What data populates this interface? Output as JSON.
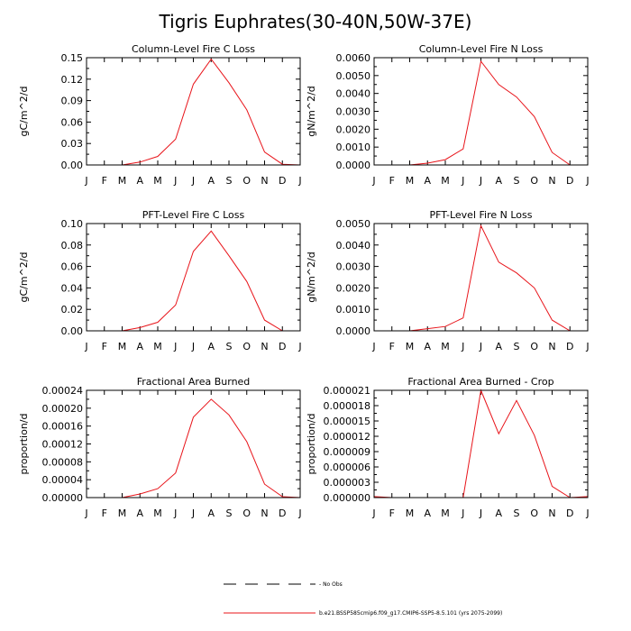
{
  "figure_title": "Tigris Euphrates(30-40N,50W-37E)",
  "months": [
    "J",
    "F",
    "M",
    "A",
    "M",
    "J",
    "J",
    "A",
    "S",
    "O",
    "N",
    "D",
    "J"
  ],
  "chart_data": [
    {
      "type": "line",
      "title": "Column-Level Fire C Loss",
      "ylabel": "gC/m^2/d",
      "ylim": [
        0,
        0.15
      ],
      "yticks": [
        "0.00",
        "0.03",
        "0.06",
        "0.09",
        "0.12",
        "0.15"
      ],
      "series": [
        {
          "values": [
            0.0,
            0.0,
            0.0,
            0.004,
            0.012,
            0.036,
            0.113,
            0.148,
            0.115,
            0.077,
            0.018,
            0.001,
            0.0
          ]
        }
      ]
    },
    {
      "type": "line",
      "title": "Column-Level Fire N Loss",
      "ylabel": "gN/m^2/d",
      "ylim": [
        0,
        0.006
      ],
      "yticks": [
        "0.0000",
        "0.0010",
        "0.0020",
        "0.0030",
        "0.0040",
        "0.0050",
        "0.0060"
      ],
      "series": [
        {
          "values": [
            0.0,
            0.0,
            0.0,
            0.0001,
            0.0003,
            0.0009,
            0.0058,
            0.0045,
            0.0038,
            0.0027,
            0.0007,
            0.0,
            0.0
          ]
        }
      ]
    },
    {
      "type": "line",
      "title": "PFT-Level Fire C Loss",
      "ylabel": "gC/m^2/d",
      "ylim": [
        0,
        0.1
      ],
      "yticks": [
        "0.00",
        "0.02",
        "0.04",
        "0.06",
        "0.08",
        "0.10"
      ],
      "series": [
        {
          "values": [
            0.0,
            0.0,
            0.0,
            0.003,
            0.008,
            0.024,
            0.074,
            0.093,
            0.07,
            0.046,
            0.01,
            0.0,
            0.0
          ]
        }
      ]
    },
    {
      "type": "line",
      "title": "PFT-Level Fire N Loss",
      "ylabel": "gN/m^2/d",
      "ylim": [
        0,
        0.005
      ],
      "yticks": [
        "0.0000",
        "0.0010",
        "0.0020",
        "0.0030",
        "0.0040",
        "0.0050"
      ],
      "series": [
        {
          "values": [
            0.0,
            0.0,
            0.0,
            0.0001,
            0.0002,
            0.0006,
            0.0049,
            0.0032,
            0.0027,
            0.002,
            0.0005,
            0.0,
            0.0
          ]
        }
      ]
    },
    {
      "type": "line",
      "title": "Fractional Area Burned",
      "ylabel": "proportion/d",
      "ylim": [
        0,
        0.00024
      ],
      "yticks": [
        "0.00000",
        "0.00004",
        "0.00008",
        "0.00012",
        "0.00016",
        "0.00020",
        "0.00024"
      ],
      "series": [
        {
          "values": [
            0.0,
            0.0,
            0.0,
            8e-06,
            2e-05,
            5.5e-05,
            0.00018,
            0.00022,
            0.000185,
            0.000125,
            3e-05,
            2e-06,
            0.0
          ]
        }
      ]
    },
    {
      "type": "line",
      "title": "Fractional Area Burned - Crop",
      "ylabel": "proportion/d",
      "ylim": [
        0,
        2.1e-05
      ],
      "yticks": [
        "0.000000",
        "0.000003",
        "0.000006",
        "0.000009",
        "0.000012",
        "0.000015",
        "0.000018",
        "0.000021"
      ],
      "series": [
        {
          "values": [
            2e-07,
            0.0,
            0.0,
            0.0,
            0.0,
            0.0,
            2.1e-05,
            1.25e-05,
            1.9e-05,
            1.22e-05,
            2.2e-06,
            0.0,
            2e-07
          ]
        }
      ]
    }
  ],
  "legend": {
    "obs_label": "- No Obs",
    "model_label": "b.e21.BSSP585cmip6.f09_g17.CMIP6-SSP5-8.5.101 (yrs 2075-2099)",
    "model_color": "#e8141a",
    "obs_color": "#000000"
  },
  "colors": {
    "line": "#e8141a",
    "axis": "#000000"
  }
}
